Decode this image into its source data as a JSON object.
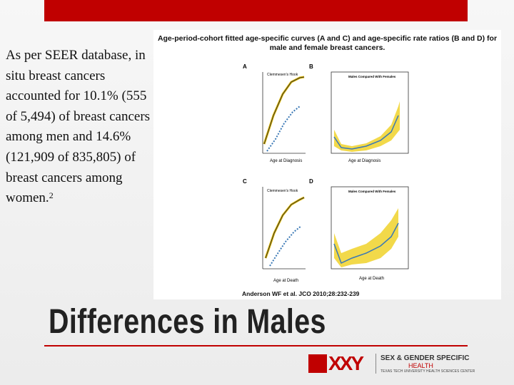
{
  "body_text": {
    "text": "As per SEER database, in situ breast cancers accounted for 10.1% (555 of 5,494) of breast cancers among men and 14.6% (121,909 of 835,805) of breast cancers among women.",
    "superscript": "2"
  },
  "figure": {
    "title": "Age-period-cohort fitted age-specific curves (A and C) and age-specific rate ratios (B and D) for male and female breast cancers.",
    "panels": [
      {
        "label": "A",
        "x_label": "Age at Diagnosis",
        "annotation": "Clemmesen's Hook"
      },
      {
        "label": "B",
        "x_label": "Age at Diagnosis",
        "subtitle": "Males Compared With Females"
      },
      {
        "label": "C",
        "x_label": "Age at Death",
        "annotation": "Clemmesen's Hook"
      },
      {
        "label": "D",
        "x_label": "Age at Death",
        "subtitle": "Males Compared With Females"
      }
    ],
    "citation": "Anderson WF et al. JCO 2010;28:232-239"
  },
  "title": "Differences in Males",
  "logo": {
    "mark": "XXY",
    "lines": [
      "SEX & GENDER SPECIFIC",
      "HEALTH",
      "TEXAS TECH UNIVERSITY HEALTH SCIENCES CENTER"
    ]
  }
}
